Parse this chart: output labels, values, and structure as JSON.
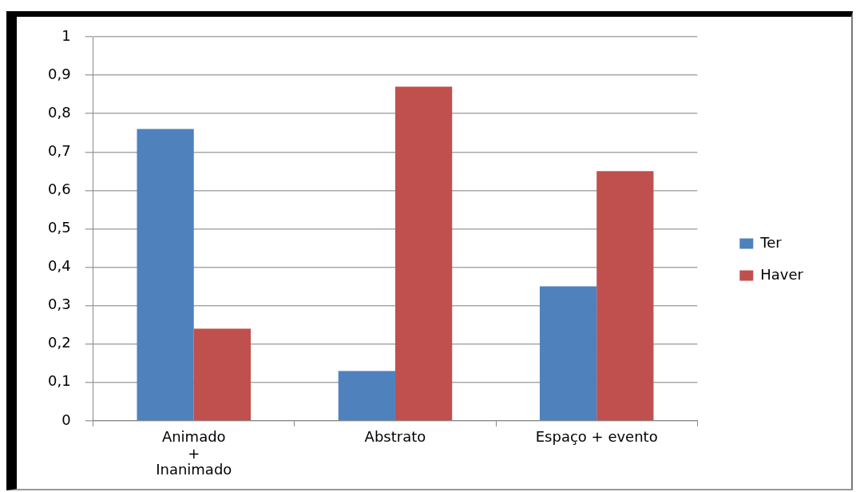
{
  "chart_data": {
    "type": "bar",
    "categories": [
      "Animado\n+\nInanimado",
      "Abstrato",
      "Espaço + evento"
    ],
    "series": [
      {
        "name": "Ter",
        "color": "#4f81bd",
        "values": [
          0.76,
          0.13,
          0.35
        ]
      },
      {
        "name": "Haver",
        "color": "#c0504d",
        "values": [
          0.24,
          0.87,
          0.65
        ]
      }
    ],
    "ylim": [
      0,
      1
    ],
    "yticks": [
      0,
      {
        "value": 0.1,
        "label": "0,1"
      },
      {
        "value": 0.2,
        "label": "0,2"
      },
      {
        "value": 0.3,
        "label": "0,3"
      },
      {
        "value": 0.4,
        "label": "0,4"
      },
      {
        "value": 0.5,
        "label": "0,5"
      },
      {
        "value": 0.6,
        "label": "0,6"
      },
      {
        "value": 0.7,
        "label": "0,7"
      },
      {
        "value": 0.8,
        "label": "0,8"
      },
      {
        "value": 0.9,
        "label": "0,9"
      },
      1
    ],
    "grid": "y",
    "legend": "right"
  }
}
